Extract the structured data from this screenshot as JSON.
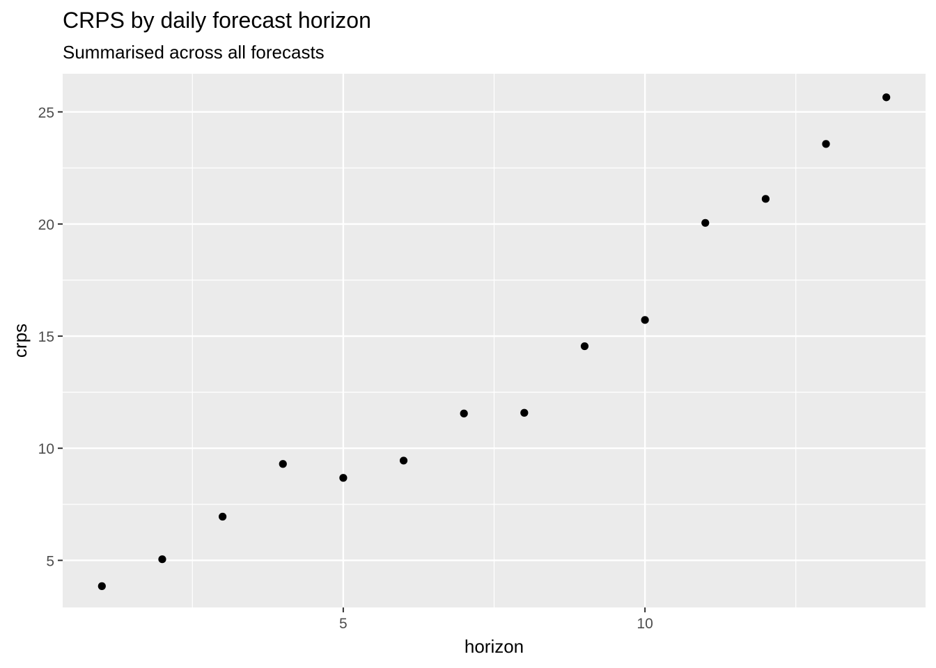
{
  "chart_data": {
    "type": "scatter",
    "title": "CRPS by daily forecast horizon",
    "subtitle": "Summarised across all forecasts",
    "xlabel": "horizon",
    "ylabel": "crps",
    "xlim": [
      0.35,
      14.65
    ],
    "ylim": [
      2.9,
      26.7
    ],
    "x_ticks": [
      5,
      10
    ],
    "x_tick_labels": [
      "5",
      "10"
    ],
    "x_minor_ticks": [
      2.5,
      7.5,
      12.5
    ],
    "y_ticks": [
      5,
      10,
      15,
      20,
      25
    ],
    "y_tick_labels": [
      "5",
      "10",
      "15",
      "20",
      "25"
    ],
    "y_minor_ticks": [
      7.5,
      12.5,
      17.5,
      22.5
    ],
    "grid": true,
    "panel_background": "#ebebeb",
    "grid_color": "#ffffff",
    "point_color": "#000000",
    "series": [
      {
        "x": [
          1,
          2,
          3,
          4,
          5,
          6,
          7,
          8,
          9,
          10,
          11,
          12,
          13,
          14
        ],
        "y": [
          3.85,
          5.05,
          6.95,
          9.3,
          8.68,
          9.45,
          11.55,
          11.58,
          14.55,
          15.72,
          20.05,
          21.12,
          23.57,
          25.65
        ]
      }
    ]
  }
}
